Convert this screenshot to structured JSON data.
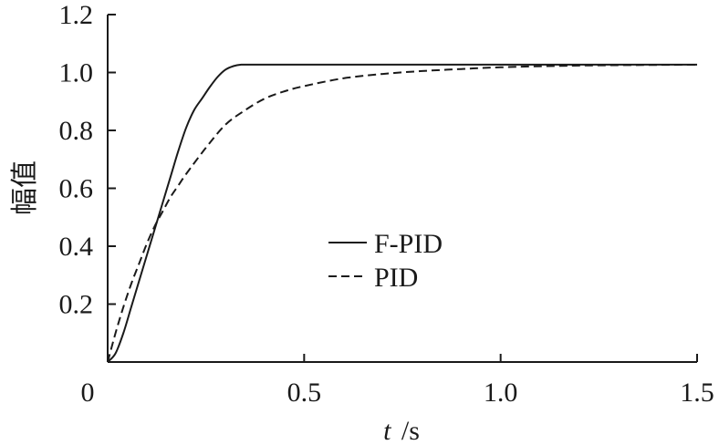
{
  "chart_data": {
    "type": "line",
    "title": "",
    "xlabel_italic": "t",
    "xlabel_unit": "/s",
    "ylabel": "幅值",
    "xlim": [
      0,
      1.5
    ],
    "ylim": [
      0,
      1.2
    ],
    "x_ticks": [
      0,
      0.5,
      1.0,
      1.5
    ],
    "x_tick_labels": [
      "0",
      "0.5",
      "1.0",
      "1.5"
    ],
    "y_ticks": [
      0.2,
      0.4,
      0.6,
      0.8,
      1.0,
      1.2
    ],
    "y_tick_labels": [
      "0.2",
      "0.4",
      "0.6",
      "0.8",
      "1.0",
      "1.2"
    ],
    "grid": false,
    "legend_position": "center",
    "series": [
      {
        "name": "F-PID",
        "style": "solid",
        "color": "#1a1a1a",
        "x": [
          0,
          0.02,
          0.04,
          0.06,
          0.08,
          0.1,
          0.12,
          0.14,
          0.16,
          0.18,
          0.2,
          0.22,
          0.24,
          0.26,
          0.28,
          0.3,
          0.32,
          0.34,
          0.36,
          0.4,
          0.5,
          0.75,
          1.0,
          1.25,
          1.5
        ],
        "values": [
          0,
          0.03,
          0.1,
          0.19,
          0.28,
          0.37,
          0.46,
          0.55,
          0.64,
          0.73,
          0.81,
          0.87,
          0.91,
          0.95,
          0.985,
          1.01,
          1.022,
          1.027,
          1.027,
          1.027,
          1.027,
          1.027,
          1.027,
          1.027,
          1.027
        ]
      },
      {
        "name": "PID",
        "style": "dashed",
        "color": "#1a1a1a",
        "x": [
          0,
          0.02,
          0.04,
          0.06,
          0.08,
          0.1,
          0.12,
          0.14,
          0.16,
          0.18,
          0.2,
          0.25,
          0.3,
          0.35,
          0.4,
          0.45,
          0.5,
          0.6,
          0.7,
          0.8,
          0.9,
          1.0,
          1.2,
          1.5
        ],
        "values": [
          0,
          0.1,
          0.19,
          0.27,
          0.34,
          0.41,
          0.47,
          0.52,
          0.57,
          0.61,
          0.65,
          0.74,
          0.82,
          0.87,
          0.91,
          0.935,
          0.953,
          0.98,
          0.995,
          1.005,
          1.012,
          1.018,
          1.024,
          1.027
        ]
      }
    ]
  }
}
